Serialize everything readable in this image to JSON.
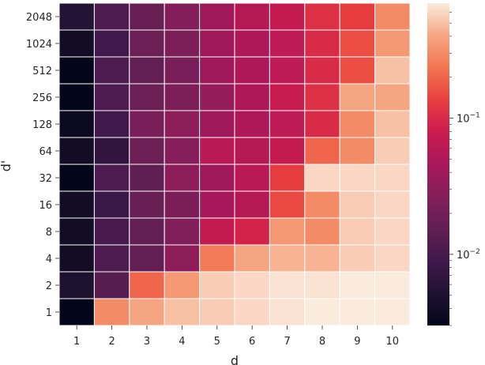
{
  "chart_data": {
    "type": "heatmap",
    "title": "",
    "xlabel": "d",
    "ylabel": "d'",
    "x_categories": [
      "1",
      "2",
      "3",
      "4",
      "5",
      "6",
      "7",
      "8",
      "9",
      "10"
    ],
    "y_categories": [
      "2048",
      "1024",
      "512",
      "256",
      "128",
      "64",
      "32",
      "16",
      "8",
      "4",
      "2",
      "1"
    ],
    "values": [
      [
        0.0055,
        0.011,
        0.017,
        0.026,
        0.04,
        0.055,
        0.07,
        0.11,
        0.13,
        0.3
      ],
      [
        0.004,
        0.009,
        0.018,
        0.024,
        0.04,
        0.05,
        0.065,
        0.1,
        0.16,
        0.35
      ],
      [
        0.003,
        0.011,
        0.016,
        0.022,
        0.04,
        0.05,
        0.065,
        0.1,
        0.16,
        0.5
      ],
      [
        0.003,
        0.011,
        0.018,
        0.024,
        0.035,
        0.05,
        0.075,
        0.11,
        0.4,
        0.4
      ],
      [
        0.0035,
        0.009,
        0.022,
        0.03,
        0.04,
        0.05,
        0.065,
        0.1,
        0.3,
        0.5
      ],
      [
        0.004,
        0.007,
        0.018,
        0.027,
        0.06,
        0.055,
        0.07,
        0.2,
        0.3,
        0.55
      ],
      [
        0.0025,
        0.011,
        0.015,
        0.03,
        0.04,
        0.06,
        0.13,
        0.6,
        0.6,
        0.6
      ],
      [
        0.004,
        0.008,
        0.017,
        0.023,
        0.045,
        0.055,
        0.15,
        0.3,
        0.55,
        0.6
      ],
      [
        0.004,
        0.01,
        0.016,
        0.025,
        0.07,
        0.09,
        0.35,
        0.3,
        0.55,
        0.6
      ],
      [
        0.004,
        0.011,
        0.016,
        0.03,
        0.25,
        0.4,
        0.45,
        0.45,
        0.55,
        0.6
      ],
      [
        0.005,
        0.013,
        0.2,
        0.35,
        0.55,
        0.6,
        0.65,
        0.65,
        0.7,
        0.75
      ],
      [
        0.003,
        0.3,
        0.4,
        0.5,
        0.55,
        0.6,
        0.65,
        0.7,
        0.75,
        0.8
      ]
    ],
    "colorbar": {
      "scale": "log",
      "range": [
        0.003,
        0.7
      ],
      "ticks": [
        {
          "base": "10",
          "exp": "−1",
          "value": 0.1
        },
        {
          "base": "10",
          "exp": "−2",
          "value": 0.01
        }
      ],
      "colormap": "rocket"
    },
    "grid_lines": true
  }
}
